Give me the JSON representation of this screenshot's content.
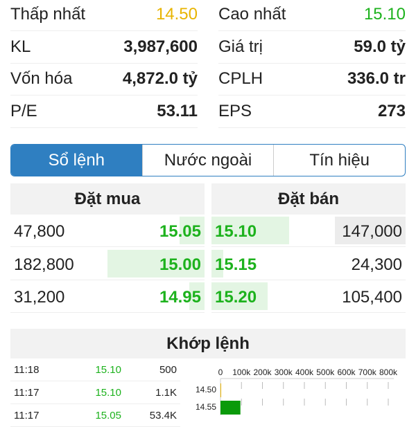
{
  "stats": [
    {
      "label": "Thấp nhất",
      "value": "14.50",
      "color": "#e8b400"
    },
    {
      "label": "Cao nhất",
      "value": "15.10",
      "color": "#1db21d"
    },
    {
      "label": "KL",
      "value": "3,987,600"
    },
    {
      "label": "Giá trị",
      "value": "59.0 tỷ"
    },
    {
      "label": "Vốn hóa",
      "value": "4,872.0 tỷ"
    },
    {
      "label": "CPLH",
      "value": "336.0 tr"
    },
    {
      "label": "P/E",
      "value": "53.11"
    },
    {
      "label": "EPS",
      "value": "273"
    }
  ],
  "tabs": [
    "Sổ lệnh",
    "Nước ngoài",
    "Tín hiệu"
  ],
  "orderbook": {
    "buy_header": "Đặt mua",
    "sell_header": "Đặt bán",
    "buy": [
      {
        "volume": "47,800",
        "price": "15.05",
        "bar": 0.13
      },
      {
        "volume": "182,800",
        "price": "15.00",
        "bar": 0.5
      },
      {
        "volume": "31,200",
        "price": "14.95",
        "bar": 0.08
      }
    ],
    "sell": [
      {
        "price": "15.10",
        "volume": "147,000",
        "bar": 0.4
      },
      {
        "price": "15.15",
        "volume": "24,300",
        "bar": 0.06
      },
      {
        "price": "15.20",
        "volume": "105,400",
        "bar": 0.29
      }
    ]
  },
  "matched": {
    "title": "Khớp lệnh",
    "trades": [
      {
        "time": "11:18",
        "price": "15.10",
        "volume": "500"
      },
      {
        "time": "11:17",
        "price": "15.10",
        "volume": "1.1K"
      },
      {
        "time": "11:17",
        "price": "15.05",
        "volume": "53.4K"
      }
    ]
  },
  "chart_data": {
    "type": "bar",
    "orientation": "horizontal",
    "x_ticks": [
      "0",
      "100k",
      "200k",
      "300k",
      "400k",
      "500k",
      "600k",
      "700k",
      "800k"
    ],
    "xlim": [
      0,
      800000
    ],
    "categories": [
      "14.50",
      "14.55"
    ],
    "values": [
      2000,
      95000
    ],
    "colors": [
      "#e8b400",
      "#0a9a0a"
    ]
  }
}
